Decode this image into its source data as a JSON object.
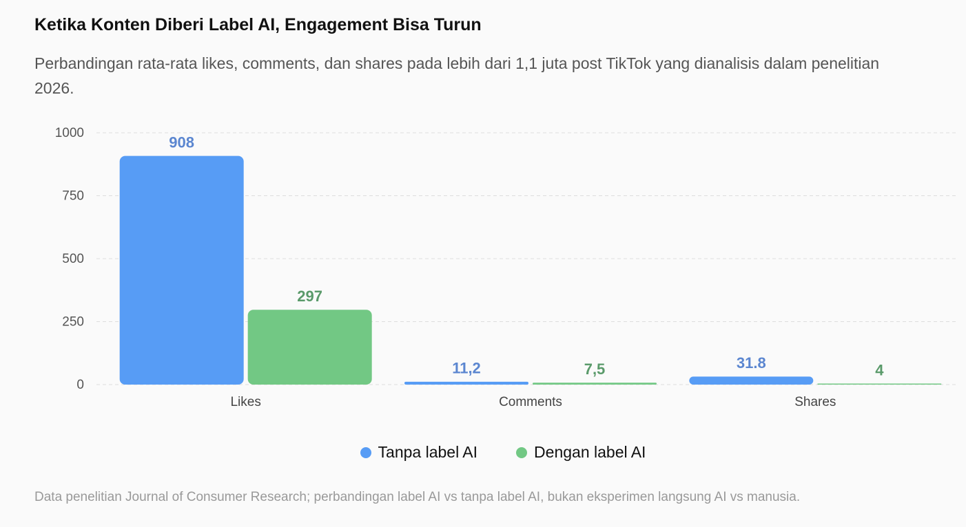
{
  "chart_data": {
    "type": "bar",
    "title": "Ketika Konten Diberi Label AI, Engagement Bisa Turun",
    "subtitle": "Perbandingan rata-rata likes, comments, dan shares pada lebih dari 1,1 juta post TikTok yang dianalisis dalam penelitian 2026.",
    "categories": [
      "Likes",
      "Comments",
      "Shares"
    ],
    "series": [
      {
        "name": "Tanpa label AI",
        "color": "#579cf5",
        "label_color": "#5b86d0",
        "values": [
          908,
          11.2,
          31.8
        ],
        "value_labels": [
          "908",
          "11,2",
          "31.8"
        ]
      },
      {
        "name": "Dengan label AI",
        "color": "#72c884",
        "label_color": "#5a9a6a",
        "values": [
          297,
          7.5,
          4
        ],
        "value_labels": [
          "297",
          "7,5",
          "4"
        ]
      }
    ],
    "ylim": [
      0,
      1000
    ],
    "yticks": [
      0,
      250,
      500,
      750,
      1000
    ],
    "grid": true,
    "footnote": "Data penelitian Journal of Consumer Research; perbandingan label AI vs tanpa label AI, bukan eksperimen langsung AI vs manusia."
  }
}
